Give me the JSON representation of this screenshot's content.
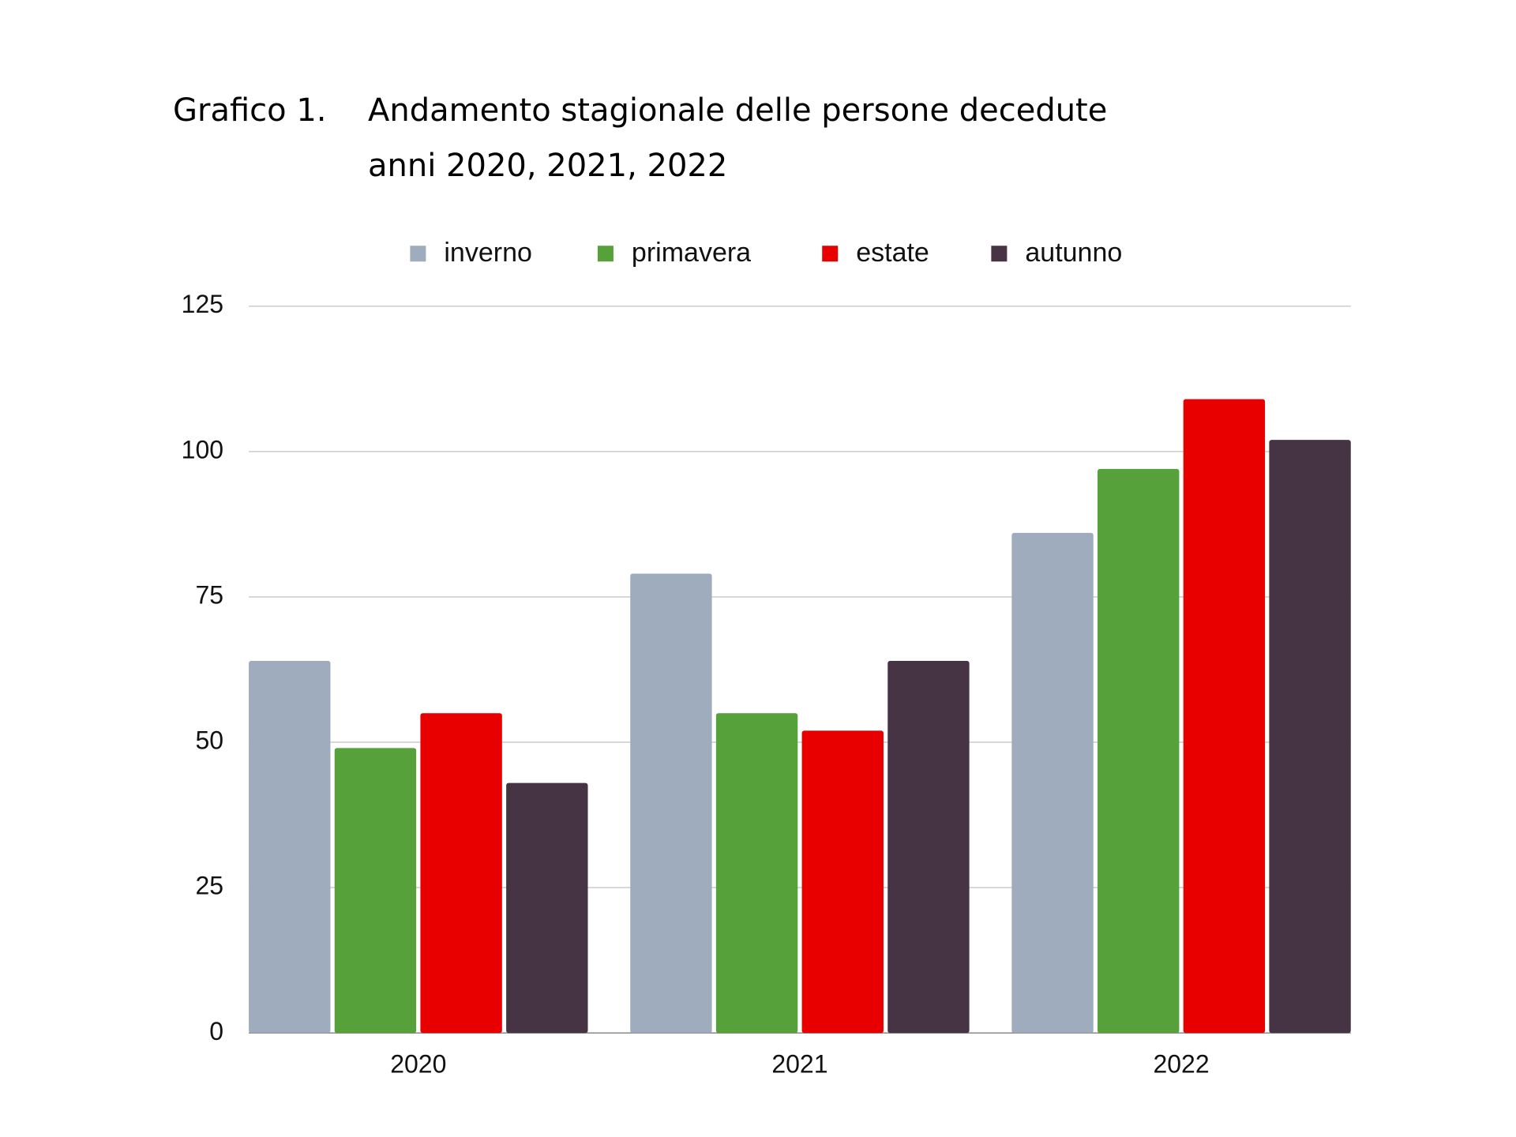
{
  "chart_data": {
    "type": "bar",
    "title_prefix": "Grafico 1.",
    "title": [
      "Andamento stagionale delle persone decedute",
      "anni 2020, 2021, 2022"
    ],
    "categories": [
      "2020",
      "2021",
      "2022"
    ],
    "series": [
      {
        "name": "inverno",
        "color": "#9eacbe",
        "values": [
          64,
          79,
          86
        ]
      },
      {
        "name": "primavera",
        "color": "#57a13a",
        "values": [
          49,
          55,
          97
        ]
      },
      {
        "name": "estate",
        "color": "#e80000",
        "values": [
          55,
          52,
          109
        ]
      },
      {
        "name": "autunno",
        "color": "#463444",
        "values": [
          43,
          64,
          102
        ]
      }
    ],
    "ylim": [
      0,
      125
    ],
    "yticks": [
      0,
      25,
      50,
      75,
      100,
      125
    ],
    "grid": true,
    "legend": "top"
  }
}
